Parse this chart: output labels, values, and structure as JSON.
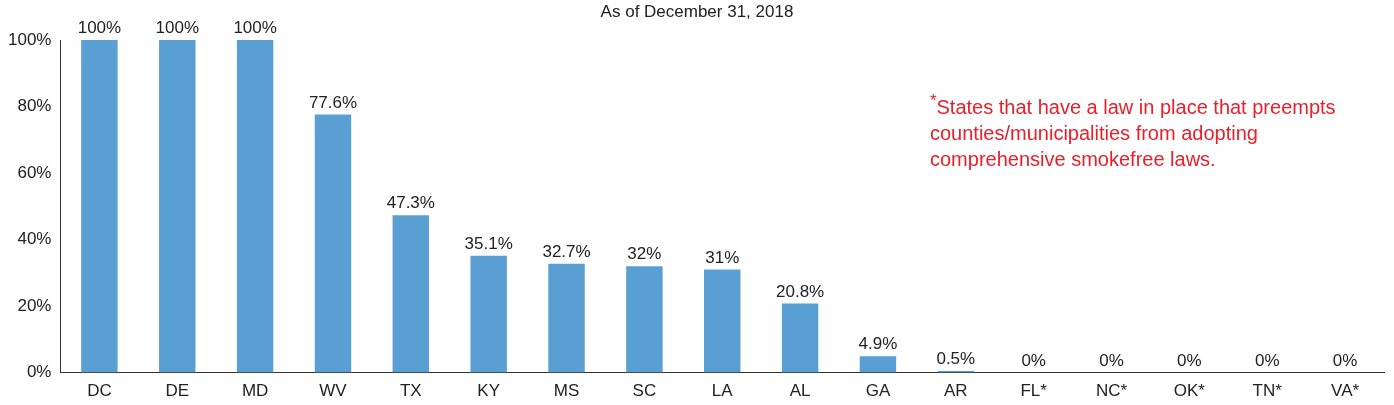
{
  "chart_data": {
    "type": "bar",
    "title": "As of December 31, 2018",
    "categories": [
      "DC",
      "DE",
      "MD",
      "WV",
      "TX",
      "KY",
      "MS",
      "SC",
      "LA",
      "AL",
      "GA",
      "AR",
      "FL*",
      "NC*",
      "OK*",
      "TN*",
      "VA*"
    ],
    "values": [
      100,
      100,
      100,
      77.6,
      47.3,
      35.1,
      32.7,
      32,
      31,
      20.8,
      4.9,
      0.5,
      0,
      0,
      0,
      0,
      0
    ],
    "value_labels": [
      "100%",
      "100%",
      "100%",
      "77.6%",
      "47.3%",
      "35.1%",
      "32.7%",
      "32%",
      "31%",
      "20.8%",
      "4.9%",
      "0.5%",
      "0%",
      "0%",
      "0%",
      "0%",
      "0%"
    ],
    "color": "#5a9fd4",
    "ylim": [
      0,
      100
    ],
    "yticks": [
      {
        "value": 0,
        "label": "0%"
      },
      {
        "value": 20,
        "label": "20%"
      },
      {
        "value": 40,
        "label": "40%"
      },
      {
        "value": 60,
        "label": "60%"
      },
      {
        "value": 80,
        "label": "80%"
      },
      {
        "value": 100,
        "label": "100%"
      }
    ],
    "grid": false,
    "legend": false,
    "annotations": [
      "$^{*}$States that have a law in place that preempts counties/municipalities from adopting comprehensive smokefree laws."
    ]
  }
}
